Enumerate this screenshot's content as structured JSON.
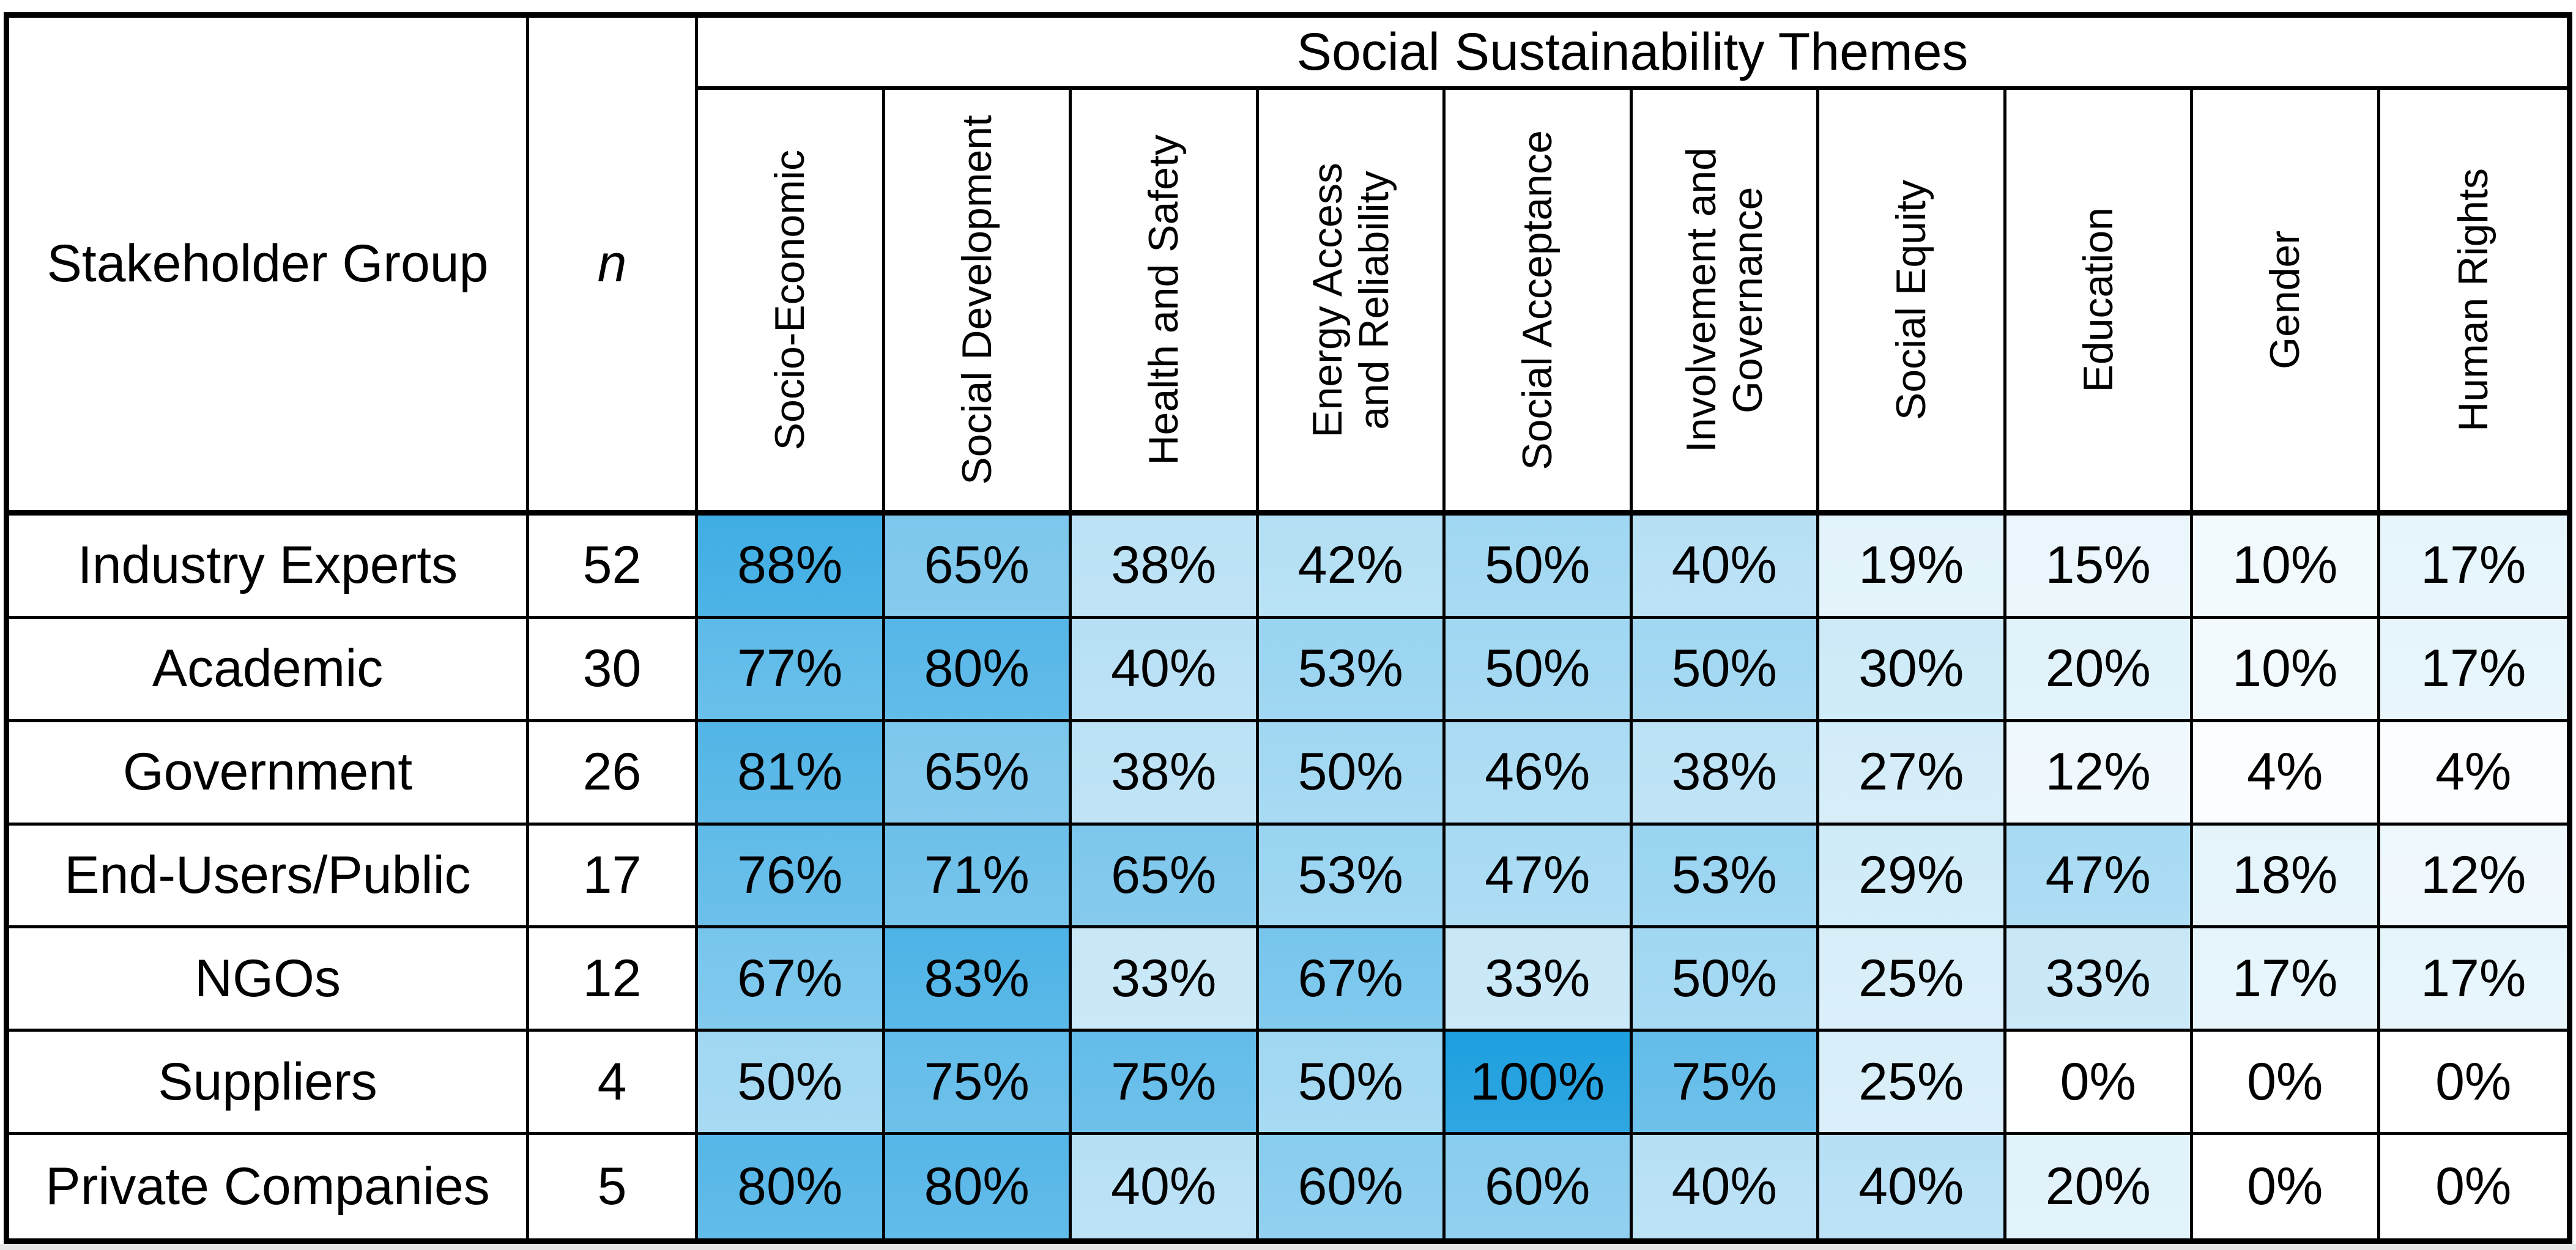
{
  "chart_data": {
    "type": "heatmap",
    "title": "Social Sustainability Themes",
    "row_axis_label": "Stakeholder Group",
    "sample_size_header": "n",
    "unit": "%",
    "columns": [
      "Socio-Economic",
      "Social Development",
      "Health and Safety",
      "Energy Access\nand Reliability",
      "Social Acceptance",
      "Involvement and\nGovernance",
      "Social Equity",
      "Education",
      "Gender",
      "Human Rights"
    ],
    "rows": [
      {
        "group": "Industry Experts",
        "n": 52,
        "values": [
          88,
          65,
          38,
          42,
          50,
          40,
          19,
          15,
          10,
          17
        ]
      },
      {
        "group": "Academic",
        "n": 30,
        "values": [
          77,
          80,
          40,
          53,
          50,
          50,
          30,
          20,
          10,
          17
        ]
      },
      {
        "group": "Government",
        "n": 26,
        "values": [
          81,
          65,
          38,
          50,
          46,
          38,
          27,
          12,
          4,
          4
        ]
      },
      {
        "group": "End-Users/Public",
        "n": 17,
        "values": [
          76,
          71,
          65,
          53,
          47,
          53,
          29,
          47,
          18,
          12
        ]
      },
      {
        "group": "NGOs",
        "n": 12,
        "values": [
          67,
          83,
          33,
          67,
          33,
          50,
          25,
          33,
          17,
          17
        ]
      },
      {
        "group": "Suppliers",
        "n": 4,
        "values": [
          50,
          75,
          75,
          50,
          100,
          75,
          25,
          0,
          0,
          0
        ]
      },
      {
        "group": "Private Companies",
        "n": 5,
        "values": [
          80,
          80,
          40,
          60,
          60,
          40,
          40,
          20,
          0,
          0
        ]
      }
    ],
    "color_scale": {
      "domain": [
        0,
        100
      ],
      "min_color": "#FFFFFF",
      "max_color": "#1E9FDF",
      "gamma": 1.25
    },
    "grid": true,
    "border_color": "#000000",
    "text_color": "#000000"
  }
}
